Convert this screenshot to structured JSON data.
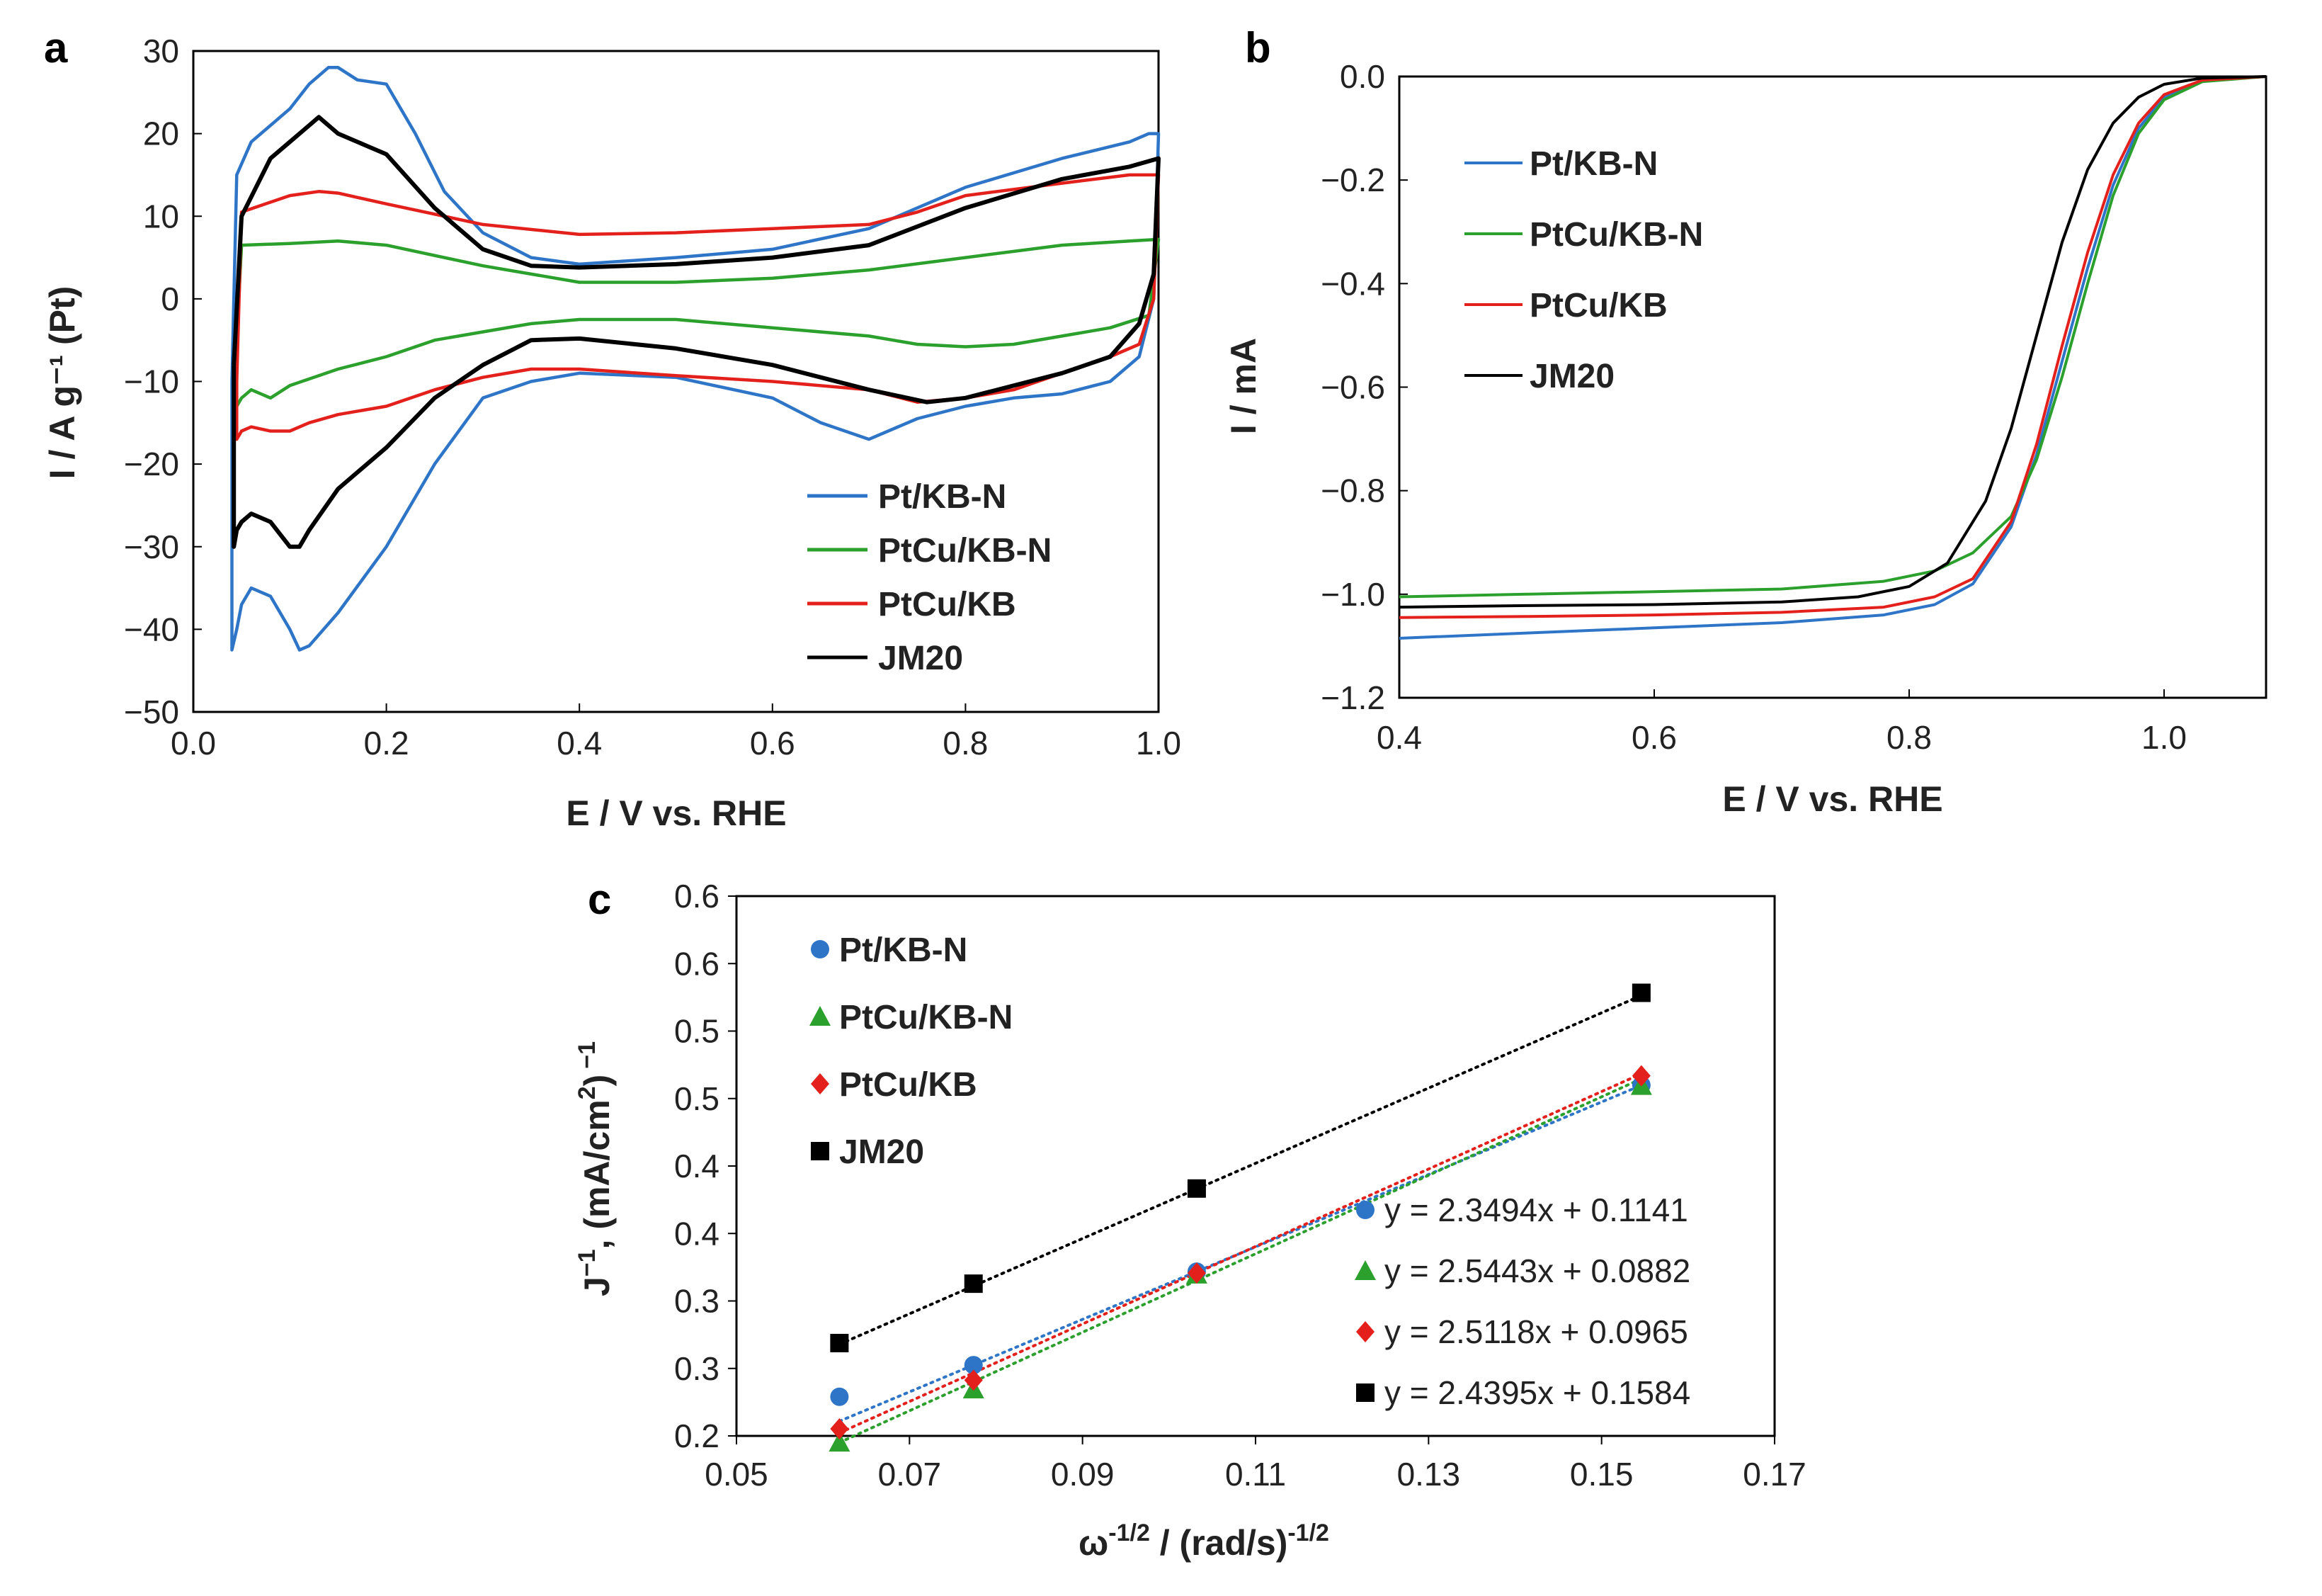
{
  "chart_data": [
    {
      "id": "a",
      "type": "line",
      "panel_label": "a",
      "xlabel": "E / V vs. RHE",
      "ylabel": "I / A g⁻¹ (Pt)",
      "xlim": [
        0.0,
        1.0
      ],
      "ylim": [
        -50,
        30
      ],
      "xticks": [
        "0.0",
        "0.2",
        "0.4",
        "0.6",
        "0.8",
        "1.0"
      ],
      "yticks": [
        "30",
        "20",
        "10",
        "0",
        "−10",
        "−20",
        "−30",
        "−40",
        "−50"
      ],
      "legend_position": "bottom-right",
      "series": [
        {
          "name": "Pt/KB-N",
          "color": "#2e75c8",
          "x": [
            0.04,
            0.045,
            0.06,
            0.08,
            0.1,
            0.12,
            0.14,
            0.15,
            0.17,
            0.2,
            0.23,
            0.26,
            0.3,
            0.35,
            0.4,
            0.5,
            0.6,
            0.7,
            0.8,
            0.9,
            0.97,
            0.99,
            1.0,
            0.995,
            0.98,
            0.95,
            0.9,
            0.85,
            0.8,
            0.75,
            0.7,
            0.65,
            0.6,
            0.5,
            0.4,
            0.35,
            0.3,
            0.25,
            0.2,
            0.15,
            0.12,
            0.11,
            0.1,
            0.08,
            0.06,
            0.05,
            0.045,
            0.04,
            0.04
          ],
          "y": [
            -10,
            15,
            19,
            21,
            23,
            26,
            28,
            28,
            26.5,
            26,
            20,
            13,
            8,
            5,
            4.2,
            5,
            6,
            8.5,
            13.5,
            17,
            19,
            20,
            20,
            0,
            -7,
            -10,
            -11.5,
            -12,
            -13,
            -14.5,
            -17,
            -15,
            -12,
            -9.5,
            -9,
            -10,
            -12,
            -20,
            -30,
            -38,
            -42,
            -42.5,
            -40,
            -36,
            -35,
            -37,
            -40,
            -42.5,
            -10
          ]
        },
        {
          "name": "PtCu/KB-N",
          "color": "#2ca02c",
          "x": [
            0.045,
            0.05,
            0.1,
            0.15,
            0.2,
            0.3,
            0.4,
            0.5,
            0.6,
            0.7,
            0.8,
            0.9,
            0.97,
            1.0,
            0.99,
            0.95,
            0.9,
            0.85,
            0.8,
            0.75,
            0.7,
            0.6,
            0.5,
            0.4,
            0.35,
            0.3,
            0.25,
            0.2,
            0.15,
            0.1,
            0.08,
            0.06,
            0.05,
            0.045,
            0.045
          ],
          "y": [
            -5,
            6.5,
            6.7,
            7,
            6.5,
            4,
            2,
            2,
            2.5,
            3.5,
            5,
            6.5,
            7,
            7.2,
            -2,
            -3.5,
            -4.5,
            -5.5,
            -5.8,
            -5.5,
            -4.5,
            -3.5,
            -2.5,
            -2.5,
            -3,
            -4,
            -5,
            -7,
            -8.5,
            -10.5,
            -12,
            -11,
            -12,
            -13,
            -5
          ]
        },
        {
          "name": "PtCu/KB",
          "color": "#e3201b",
          "x": [
            0.045,
            0.05,
            0.1,
            0.13,
            0.15,
            0.2,
            0.3,
            0.4,
            0.5,
            0.6,
            0.7,
            0.75,
            0.8,
            0.9,
            0.97,
            1.0,
            0.995,
            0.98,
            0.95,
            0.9,
            0.85,
            0.8,
            0.75,
            0.7,
            0.6,
            0.5,
            0.4,
            0.35,
            0.3,
            0.25,
            0.2,
            0.15,
            0.12,
            0.1,
            0.08,
            0.06,
            0.05,
            0.045,
            0.045
          ],
          "y": [
            -10,
            10.5,
            12.5,
            13,
            12.8,
            11.5,
            9,
            7.8,
            8,
            8.5,
            9,
            10.5,
            12.5,
            14,
            15,
            15,
            0,
            -5.5,
            -7,
            -9,
            -11,
            -12,
            -12.5,
            -11,
            -10,
            -9.3,
            -8.5,
            -8.5,
            -9.5,
            -11,
            -13,
            -14,
            -15,
            -16,
            -16,
            -15.5,
            -16,
            -17,
            -10
          ]
        },
        {
          "name": "JM20",
          "color": "#000000",
          "x": [
            0.042,
            0.05,
            0.08,
            0.1,
            0.12,
            0.13,
            0.15,
            0.18,
            0.2,
            0.25,
            0.3,
            0.35,
            0.4,
            0.5,
            0.6,
            0.7,
            0.8,
            0.9,
            0.97,
            1.0,
            0.995,
            0.98,
            0.95,
            0.9,
            0.85,
            0.8,
            0.76,
            0.7,
            0.6,
            0.5,
            0.4,
            0.35,
            0.3,
            0.25,
            0.2,
            0.15,
            0.12,
            0.11,
            0.1,
            0.08,
            0.06,
            0.05,
            0.045,
            0.042,
            0.042
          ],
          "y": [
            -8,
            10,
            17,
            19,
            21,
            22,
            20,
            18.5,
            17.5,
            11,
            6,
            4,
            3.8,
            4.2,
            5,
            6.5,
            11,
            14.5,
            16,
            17,
            3,
            -3,
            -7,
            -9,
            -10.5,
            -12,
            -12.5,
            -11,
            -8,
            -6,
            -4.8,
            -5,
            -8,
            -12,
            -18,
            -23,
            -28,
            -30,
            -30,
            -27,
            -26,
            -27,
            -28,
            -30,
            -8
          ]
        }
      ]
    },
    {
      "id": "b",
      "type": "line",
      "panel_label": "b",
      "xlabel": "E / V vs. RHE",
      "ylabel": "I / mA",
      "xlim": [
        0.4,
        1.08
      ],
      "ylim": [
        -1.2,
        0.0
      ],
      "xticks": [
        "0.4",
        "0.6",
        "0.8",
        "1.0"
      ],
      "yticks": [
        "0.0",
        "−0.2",
        "−0.4",
        "−0.6",
        "−0.8",
        "−1.0",
        "−1.2"
      ],
      "legend_position": "top-left",
      "series": [
        {
          "name": "Pt/KB-N",
          "color": "#2e75c8",
          "x": [
            0.4,
            0.5,
            0.6,
            0.7,
            0.78,
            0.82,
            0.85,
            0.88,
            0.9,
            0.92,
            0.94,
            0.96,
            0.98,
            1.0,
            1.03,
            1.08
          ],
          "y": [
            -1.085,
            -1.075,
            -1.065,
            -1.055,
            -1.04,
            -1.02,
            -0.98,
            -0.87,
            -0.73,
            -0.55,
            -0.37,
            -0.21,
            -0.1,
            -0.04,
            -0.008,
            0.0
          ]
        },
        {
          "name": "PtCu/KB-N",
          "color": "#2ca02c",
          "x": [
            0.4,
            0.5,
            0.6,
            0.7,
            0.78,
            0.82,
            0.85,
            0.88,
            0.9,
            0.92,
            0.94,
            0.96,
            0.98,
            1.0,
            1.03,
            1.08
          ],
          "y": [
            -1.005,
            -1.0,
            -0.995,
            -0.99,
            -0.975,
            -0.955,
            -0.92,
            -0.85,
            -0.74,
            -0.58,
            -0.4,
            -0.23,
            -0.11,
            -0.045,
            -0.01,
            0.0
          ]
        },
        {
          "name": "PtCu/KB",
          "color": "#e3201b",
          "x": [
            0.4,
            0.5,
            0.6,
            0.7,
            0.78,
            0.82,
            0.85,
            0.88,
            0.9,
            0.92,
            0.94,
            0.96,
            0.98,
            1.0,
            1.03,
            1.08
          ],
          "y": [
            -1.045,
            -1.043,
            -1.04,
            -1.035,
            -1.025,
            -1.005,
            -0.97,
            -0.86,
            -0.71,
            -0.52,
            -0.34,
            -0.19,
            -0.09,
            -0.035,
            -0.007,
            0.0
          ]
        },
        {
          "name": "JM20",
          "color": "#000000",
          "x": [
            0.4,
            0.5,
            0.6,
            0.7,
            0.76,
            0.8,
            0.83,
            0.86,
            0.88,
            0.9,
            0.92,
            0.94,
            0.96,
            0.98,
            1.0,
            1.03,
            1.08
          ],
          "y": [
            -1.025,
            -1.022,
            -1.02,
            -1.015,
            -1.005,
            -0.985,
            -0.94,
            -0.82,
            -0.68,
            -0.5,
            -0.32,
            -0.18,
            -0.09,
            -0.04,
            -0.015,
            -0.003,
            0.0
          ]
        }
      ]
    },
    {
      "id": "c",
      "type": "scatter",
      "panel_label": "c",
      "xlabel": "ω⁻¹ᐟ² / (rad/s)⁻¹ᐟ²",
      "xlabel_parts": {
        "a": "ω",
        "a_sup": "-1/2",
        "b": " / (rad/s)",
        "b_sup": "-1/2"
      },
      "ylabel_parts": {
        "a": "J",
        "a_sup": "−1",
        "b": ", (mA/cm",
        "b_sup": "2",
        "c": ")",
        "c_sup": "−1"
      },
      "xlim": [
        0.05,
        0.17
      ],
      "ylim": [
        0.25,
        0.6
      ],
      "xticks": [
        "0.05",
        "0.07",
        "0.09",
        "0.11",
        "0.13",
        "0.15",
        "0.17"
      ],
      "yticks": [
        "0.6",
        "0.6",
        "0.5",
        "0.5",
        "0.4",
        "0.4",
        "0.3",
        "0.3",
        "0.2"
      ],
      "legend_position": "top-left",
      "trendline_style": "dotted",
      "series": [
        {
          "name": "Pt/KB-N",
          "marker": "circle",
          "color": "#2e75c8",
          "x": [
            0.0619,
            0.0774,
            0.1032,
            0.1546
          ],
          "y": [
            0.2754,
            0.2959,
            0.3565,
            0.4774
          ],
          "equation": "y = 2.3494x + 0.1141",
          "slope": 2.3494,
          "intercept": 0.1141
        },
        {
          "name": "PtCu/KB-N",
          "marker": "triangle",
          "color": "#2ca02c",
          "x": [
            0.0619,
            0.0774,
            0.1032,
            0.1546
          ],
          "y": [
            0.2458,
            0.2803,
            0.3548,
            0.4771
          ],
          "equation": "y = 2.5443x + 0.0882",
          "slope": 2.5443,
          "intercept": 0.0882
        },
        {
          "name": "PtCu/KB",
          "marker": "diamond",
          "color": "#e3201b",
          "x": [
            0.0619,
            0.0774,
            0.1032,
            0.1546
          ],
          "y": [
            0.2546,
            0.2861,
            0.3556,
            0.4835
          ],
          "equation": "y = 2.5118x + 0.0965",
          "slope": 2.5118,
          "intercept": 0.0965
        },
        {
          "name": "JM20",
          "marker": "square",
          "color": "#000000",
          "x": [
            0.0619,
            0.0774,
            0.1032,
            0.1546
          ],
          "y": [
            0.3102,
            0.3487,
            0.4104,
            0.5373
          ],
          "equation": "y = 2.4395x + 0.1584",
          "slope": 2.4395,
          "intercept": 0.1584
        }
      ]
    }
  ]
}
